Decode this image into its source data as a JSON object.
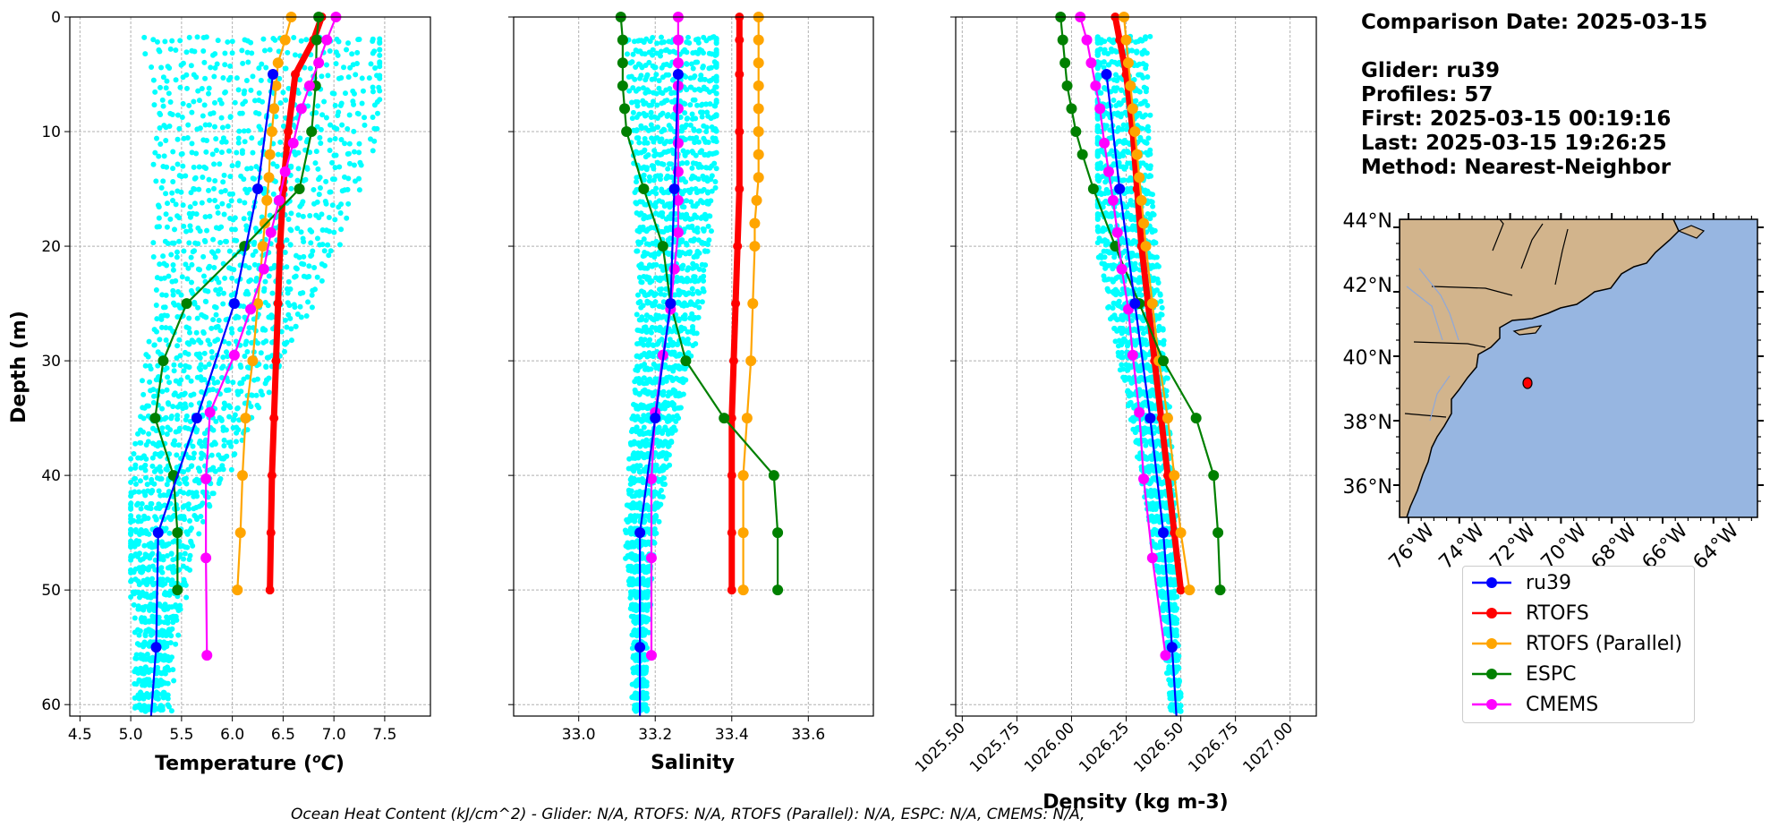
{
  "chart_data": [
    {
      "type": "line",
      "xlabel": "Temperature (°C)",
      "ylabel": "Depth (m)",
      "xlim": [
        4.4,
        7.95
      ],
      "ylim": [
        61,
        0
      ],
      "xticks": [
        "4.5",
        "5.0",
        "5.5",
        "6.0",
        "6.5",
        "7.0",
        "7.5"
      ],
      "yticks": [
        "0",
        "10",
        "20",
        "30",
        "40",
        "50",
        "60"
      ],
      "grid": true,
      "scatter_background": {
        "name": "glider profiles",
        "color": "#00ffff",
        "xrange": [
          5.0,
          7.45
        ],
        "depth_range": [
          2,
          61
        ]
      },
      "series": [
        {
          "name": "ru39",
          "color": "#0000ff",
          "depth": [
            5,
            15,
            25,
            35,
            45,
            55,
            61
          ],
          "values": [
            6.4,
            6.25,
            6.02,
            5.65,
            5.27,
            5.25,
            5.2
          ]
        },
        {
          "name": "RTOFS",
          "color": "#ff0000",
          "depth": [
            0,
            2,
            5,
            10,
            15,
            20,
            25,
            30,
            35,
            40,
            45,
            50
          ],
          "values": [
            6.88,
            6.8,
            6.62,
            6.55,
            6.5,
            6.47,
            6.45,
            6.43,
            6.41,
            6.39,
            6.38,
            6.37
          ]
        },
        {
          "name": "RTOFS (Parallel)",
          "color": "#ffa500",
          "depth": [
            0,
            2,
            4,
            6,
            8,
            10,
            12,
            14,
            16,
            18,
            20,
            25,
            30,
            35,
            40,
            45,
            50
          ],
          "values": [
            6.58,
            6.52,
            6.45,
            6.43,
            6.41,
            6.39,
            6.37,
            6.36,
            6.34,
            6.32,
            6.3,
            6.25,
            6.2,
            6.13,
            6.1,
            6.08,
            6.05
          ]
        },
        {
          "name": "ESPC",
          "color": "#008000",
          "depth": [
            0,
            2,
            6,
            10,
            15,
            20,
            25,
            30,
            35,
            40,
            45,
            50
          ],
          "values": [
            6.85,
            6.83,
            6.82,
            6.78,
            6.66,
            6.12,
            5.55,
            5.32,
            5.24,
            5.42,
            5.46,
            5.46
          ]
        },
        {
          "name": "CMEMS",
          "color": "#ff00ff",
          "depth": [
            0,
            2,
            4,
            6,
            8,
            11,
            13.5,
            16,
            18.8,
            22,
            25.5,
            29.5,
            34.5,
            40.3,
            47.2,
            55.7
          ],
          "values": [
            7.02,
            6.93,
            6.85,
            6.76,
            6.68,
            6.6,
            6.52,
            6.46,
            6.38,
            6.31,
            6.18,
            6.02,
            5.78,
            5.74,
            5.74,
            5.75
          ]
        }
      ]
    },
    {
      "type": "line",
      "xlabel": "Salinity",
      "ylabel": "",
      "xlim": [
        32.83,
        33.77
      ],
      "ylim": [
        61,
        0
      ],
      "xticks": [
        "33.0",
        "33.2",
        "33.4",
        "33.6"
      ],
      "grid": true,
      "scatter_background": {
        "name": "glider profiles",
        "color": "#00ffff",
        "xrange": [
          33.1,
          33.36
        ],
        "depth_range": [
          2,
          61
        ]
      },
      "series": [
        {
          "name": "ru39",
          "color": "#0000ff",
          "depth": [
            5,
            15,
            25,
            35,
            45,
            55,
            61
          ],
          "values": [
            33.26,
            33.25,
            33.24,
            33.2,
            33.16,
            33.16,
            33.16
          ]
        },
        {
          "name": "RTOFS",
          "color": "#ff0000",
          "depth": [
            0,
            2,
            5,
            10,
            15,
            20,
            25,
            30,
            35,
            40,
            45,
            50
          ],
          "values": [
            33.42,
            33.42,
            33.42,
            33.42,
            33.42,
            33.415,
            33.41,
            33.405,
            33.4,
            33.4,
            33.4,
            33.4
          ]
        },
        {
          "name": "RTOFS (Parallel)",
          "color": "#ffa500",
          "depth": [
            0,
            2,
            4,
            6,
            8,
            10,
            12,
            14,
            16,
            18,
            20,
            25,
            30,
            35,
            40,
            45,
            50
          ],
          "values": [
            33.47,
            33.47,
            33.47,
            33.47,
            33.47,
            33.47,
            33.47,
            33.47,
            33.465,
            33.46,
            33.46,
            33.455,
            33.45,
            33.44,
            33.43,
            33.43,
            33.43
          ]
        },
        {
          "name": "ESPC",
          "color": "#008000",
          "depth": [
            0,
            2,
            4,
            6,
            8,
            10,
            15,
            20,
            25,
            30,
            35,
            40,
            45,
            50
          ],
          "values": [
            33.11,
            33.115,
            33.115,
            33.115,
            33.12,
            33.125,
            33.17,
            33.22,
            33.24,
            33.28,
            33.38,
            33.51,
            33.52,
            33.52
          ]
        },
        {
          "name": "CMEMS",
          "color": "#ff00ff",
          "depth": [
            0,
            2,
            4,
            6,
            8,
            11,
            13.5,
            16,
            18.8,
            22,
            25.5,
            29.5,
            34.5,
            40.3,
            47.2,
            55.7
          ],
          "values": [
            33.26,
            33.26,
            33.26,
            33.26,
            33.26,
            33.26,
            33.26,
            33.26,
            33.26,
            33.25,
            33.24,
            33.22,
            33.2,
            33.19,
            33.19,
            33.19
          ]
        }
      ]
    },
    {
      "type": "line",
      "xlabel": "Density (kg m-3)",
      "ylabel": "",
      "xlim": [
        1025.47,
        1027.12
      ],
      "ylim": [
        61,
        0
      ],
      "xticks": [
        "1025.50",
        "1025.75",
        "1026.00",
        "1026.25",
        "1026.50",
        "1026.75",
        "1027.00"
      ],
      "grid": true,
      "scatter_background": {
        "name": "glider profiles",
        "color": "#00ffff",
        "xrange": [
          1026.12,
          1026.5
        ],
        "depth_range": [
          2,
          61
        ]
      },
      "series": [
        {
          "name": "ru39",
          "color": "#0000ff",
          "depth": [
            5,
            15,
            25,
            35,
            45,
            55,
            61
          ],
          "values": [
            1026.16,
            1026.22,
            1026.29,
            1026.36,
            1026.42,
            1026.46,
            1026.48
          ]
        },
        {
          "name": "RTOFS",
          "color": "#ff0000",
          "depth": [
            0,
            2,
            5,
            10,
            15,
            20,
            25,
            30,
            35,
            40,
            45,
            50
          ],
          "values": [
            1026.2,
            1026.22,
            1026.25,
            1026.28,
            1026.3,
            1026.32,
            1026.35,
            1026.38,
            1026.41,
            1026.44,
            1026.47,
            1026.5
          ]
        },
        {
          "name": "RTOFS (Parallel)",
          "color": "#ffa500",
          "depth": [
            0,
            2,
            4,
            6,
            8,
            10,
            12,
            14,
            16,
            18,
            20,
            25,
            30,
            35,
            40,
            45,
            50
          ],
          "values": [
            1026.24,
            1026.25,
            1026.26,
            1026.27,
            1026.28,
            1026.29,
            1026.3,
            1026.31,
            1026.32,
            1026.33,
            1026.34,
            1026.37,
            1026.4,
            1026.44,
            1026.47,
            1026.5,
            1026.54
          ]
        },
        {
          "name": "ESPC",
          "color": "#008000",
          "depth": [
            0,
            2,
            4,
            6,
            8,
            10,
            12,
            15,
            20,
            25,
            30,
            35,
            40,
            45,
            50
          ],
          "values": [
            1025.95,
            1025.96,
            1025.97,
            1025.98,
            1026.0,
            1026.02,
            1026.05,
            1026.1,
            1026.2,
            1026.31,
            1026.42,
            1026.57,
            1026.65,
            1026.67,
            1026.68
          ]
        },
        {
          "name": "CMEMS",
          "color": "#ff00ff",
          "depth": [
            0,
            2,
            4,
            6,
            8,
            11,
            13.5,
            16,
            18.8,
            22,
            25.5,
            29.5,
            34.5,
            40.3,
            47.2,
            55.7
          ],
          "values": [
            1026.04,
            1026.07,
            1026.09,
            1026.11,
            1026.13,
            1026.15,
            1026.17,
            1026.19,
            1026.21,
            1026.23,
            1026.26,
            1026.28,
            1026.31,
            1026.33,
            1026.37,
            1026.43
          ]
        }
      ]
    }
  ],
  "info": {
    "comparison_date": "Comparison Date: 2025-03-15",
    "glider": "Glider: ru39",
    "profiles": "Profiles: 57",
    "first": "First: 2025-03-15 00:19:16",
    "last": "Last: 2025-03-15 19:26:25",
    "method": "Method: Nearest-Neighbor"
  },
  "map": {
    "lat_labels": [
      "44°N",
      "42°N",
      "40°N",
      "38°N",
      "36°N"
    ],
    "lon_labels": [
      "76°W",
      "74°W",
      "72°W",
      "70°W",
      "68°W",
      "66°W",
      "64°W"
    ],
    "land_color": "#d2b48c",
    "ocean_color": "#97b6e1",
    "glider_marker_color": "#ff0000"
  },
  "legend": [
    {
      "label": "ru39",
      "color": "#0000ff"
    },
    {
      "label": "RTOFS",
      "color": "#ff0000"
    },
    {
      "label": "RTOFS (Parallel)",
      "color": "#ffa500"
    },
    {
      "label": "ESPC",
      "color": "#008000"
    },
    {
      "label": "CMEMS",
      "color": "#ff00ff"
    }
  ],
  "ohc_text": "Ocean Heat Content (kJ/cm^2) - Glider: N/A,  RTOFS: N/A,  RTOFS (Parallel): N/A,  ESPC: N/A,  CMEMS: N/A,"
}
